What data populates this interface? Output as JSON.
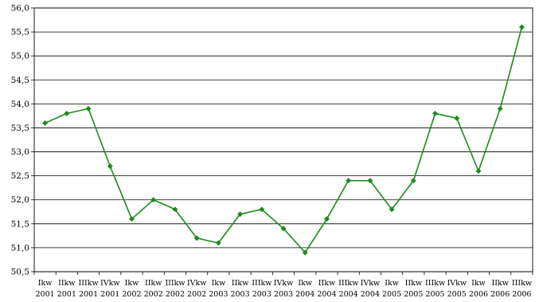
{
  "chart_data": {
    "type": "line",
    "title": "",
    "xlabel": "",
    "ylabel": "",
    "ylim": [
      50.5,
      56.0
    ],
    "grid": true,
    "legend": "none",
    "y_ticks": [
      "50,5",
      "51,0",
      "51,5",
      "52,0",
      "52,5",
      "53,0",
      "53,5",
      "54,0",
      "54,5",
      "55,0",
      "55,5",
      "56,0"
    ],
    "categories": [
      [
        "Ikw",
        "2001"
      ],
      [
        "IIkw",
        "2001"
      ],
      [
        "IIIkw",
        "2001"
      ],
      [
        "IVkw",
        "2001"
      ],
      [
        "Ikw",
        "2002"
      ],
      [
        "IIkw",
        "2002"
      ],
      [
        "IIIkw",
        "2002"
      ],
      [
        "IVkw",
        "2002"
      ],
      [
        "Ikw",
        "2003"
      ],
      [
        "IIkw",
        "2003"
      ],
      [
        "IIIkw",
        "2003"
      ],
      [
        "IVkw",
        "2003"
      ],
      [
        "Ikw",
        "2004"
      ],
      [
        "IIkw",
        "2004"
      ],
      [
        "IIIkw",
        "2004"
      ],
      [
        "IVkw",
        "2004"
      ],
      [
        "Ikw",
        "2005"
      ],
      [
        "IIkw",
        "2005"
      ],
      [
        "IIIkw",
        "2005"
      ],
      [
        "IVkw",
        "2005"
      ],
      [
        "Ikw",
        "2006"
      ],
      [
        "IIkw",
        "2006"
      ],
      [
        "IIIkw",
        "2006"
      ]
    ],
    "series": [
      {
        "color": "#1a8a1a",
        "values": [
          53.6,
          53.8,
          53.9,
          52.7,
          51.6,
          52.0,
          51.8,
          51.2,
          51.1,
          51.7,
          51.8,
          51.4,
          50.9,
          51.6,
          52.4,
          52.4,
          51.8,
          52.4,
          53.8,
          53.7,
          52.6,
          53.9,
          55.6
        ]
      }
    ]
  }
}
